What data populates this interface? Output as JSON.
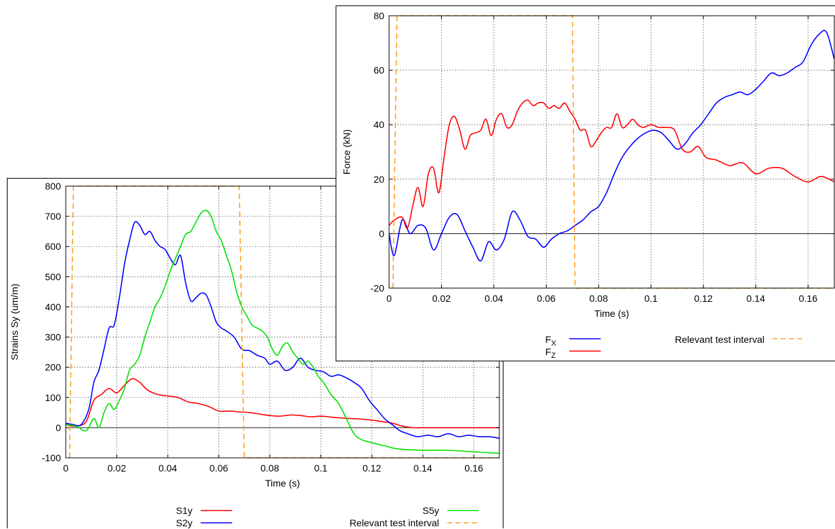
{
  "colors": {
    "red": "#ff0000",
    "blue": "#0000ff",
    "green": "#00e000",
    "orange": "#ffa020",
    "grid": "#777777"
  },
  "chart_data": [
    {
      "type": "line",
      "xlabel": "Time (s)",
      "ylabel": "Strains Sy (um/m)",
      "xlim": [
        0,
        0.17
      ],
      "ylim": [
        -100,
        800
      ],
      "xticks": [
        0,
        0.02,
        0.04,
        0.06,
        0.08,
        0.1,
        0.12,
        0.14,
        0.16
      ],
      "xtick_labels": [
        "0",
        "0.02",
        "0.04",
        "0.06",
        "0.08",
        "0.1",
        "0.12",
        "0.14",
        "0.16"
      ],
      "yticks": [
        -100,
        0,
        100,
        200,
        300,
        400,
        500,
        600,
        700,
        800
      ],
      "ytick_labels": [
        "-100",
        "0",
        "100",
        "200",
        "300",
        "400",
        "500",
        "600",
        "700",
        "800"
      ],
      "grid": true,
      "legend_placement": "bottom",
      "series": [
        {
          "name": "S1y",
          "color": "red",
          "x": [
            0,
            0.004,
            0.008,
            0.011,
            0.014,
            0.017,
            0.02,
            0.023,
            0.026,
            0.029,
            0.032,
            0.036,
            0.04,
            0.044,
            0.048,
            0.052,
            0.056,
            0.06,
            0.064,
            0.068,
            0.072,
            0.076,
            0.08,
            0.084,
            0.088,
            0.092,
            0.096,
            0.1,
            0.104,
            0.108,
            0.112,
            0.116,
            0.12,
            0.124,
            0.128,
            0.132,
            0.136,
            0.14,
            0.15,
            0.16,
            0.17
          ],
          "y": [
            10,
            5,
            20,
            90,
            110,
            130,
            115,
            140,
            162,
            150,
            125,
            110,
            105,
            100,
            85,
            80,
            70,
            55,
            55,
            52,
            50,
            45,
            40,
            38,
            42,
            40,
            36,
            38,
            35,
            32,
            30,
            28,
            25,
            20,
            15,
            5,
            0,
            0,
            0,
            0,
            0
          ]
        },
        {
          "name": "S2y",
          "color": "blue",
          "x": [
            0,
            0.003,
            0.006,
            0.009,
            0.011,
            0.013,
            0.015,
            0.017,
            0.019,
            0.021,
            0.023,
            0.025,
            0.027,
            0.029,
            0.031,
            0.033,
            0.035,
            0.037,
            0.039,
            0.041,
            0.043,
            0.045,
            0.047,
            0.049,
            0.051,
            0.053,
            0.055,
            0.057,
            0.059,
            0.061,
            0.063,
            0.066,
            0.069,
            0.072,
            0.075,
            0.078,
            0.08,
            0.083,
            0.086,
            0.089,
            0.092,
            0.095,
            0.098,
            0.101,
            0.104,
            0.107,
            0.11,
            0.113,
            0.116,
            0.119,
            0.122,
            0.125,
            0.128,
            0.131,
            0.134,
            0.138,
            0.142,
            0.146,
            0.15,
            0.154,
            0.158,
            0.162,
            0.166,
            0.17
          ],
          "y": [
            15,
            10,
            10,
            60,
            150,
            190,
            260,
            330,
            340,
            430,
            540,
            620,
            680,
            670,
            640,
            650,
            620,
            600,
            590,
            560,
            540,
            570,
            480,
            420,
            430,
            445,
            440,
            400,
            350,
            330,
            320,
            300,
            260,
            255,
            240,
            230,
            210,
            220,
            190,
            200,
            230,
            200,
            190,
            185,
            170,
            175,
            165,
            150,
            130,
            90,
            60,
            30,
            10,
            -10,
            -20,
            -30,
            -25,
            -30,
            -20,
            -30,
            -25,
            -30,
            -30,
            -35
          ]
        },
        {
          "name": "S5y",
          "color": "green",
          "x": [
            0,
            0.004,
            0.008,
            0.011,
            0.013,
            0.015,
            0.017,
            0.019,
            0.021,
            0.023,
            0.025,
            0.027,
            0.029,
            0.031,
            0.033,
            0.035,
            0.037,
            0.039,
            0.041,
            0.043,
            0.045,
            0.047,
            0.049,
            0.051,
            0.053,
            0.055,
            0.057,
            0.059,
            0.061,
            0.063,
            0.065,
            0.067,
            0.069,
            0.071,
            0.073,
            0.075,
            0.077,
            0.079,
            0.081,
            0.083,
            0.085,
            0.087,
            0.089,
            0.091,
            0.093,
            0.095,
            0.097,
            0.099,
            0.101,
            0.104,
            0.107,
            0.11,
            0.113,
            0.116,
            0.12,
            0.125,
            0.13,
            0.14,
            0.15,
            0.16,
            0.17
          ],
          "y": [
            10,
            5,
            -10,
            30,
            0,
            50,
            80,
            60,
            90,
            130,
            190,
            210,
            240,
            300,
            350,
            400,
            430,
            470,
            520,
            560,
            600,
            640,
            650,
            680,
            710,
            720,
            700,
            650,
            620,
            570,
            520,
            450,
            400,
            370,
            340,
            330,
            320,
            300,
            260,
            240,
            270,
            280,
            250,
            230,
            210,
            220,
            200,
            170,
            150,
            110,
            80,
            30,
            -20,
            -40,
            -50,
            -60,
            -70,
            -75,
            -75,
            -80,
            -85
          ]
        },
        {
          "name": "Relevant test interval",
          "color": "orange",
          "dashed": true,
          "x": [
            0.0015,
            0.003,
            0.068,
            0.07,
            0.17
          ],
          "y": [
            -100,
            800,
            800,
            -100,
            -100
          ]
        }
      ]
    },
    {
      "type": "line",
      "xlabel": "Time (s)",
      "ylabel": "Force (kN)",
      "xlim": [
        0,
        0.17
      ],
      "ylim": [
        -20,
        80
      ],
      "xticks": [
        0,
        0.02,
        0.04,
        0.06,
        0.08,
        0.1,
        0.12,
        0.14,
        0.16
      ],
      "xtick_labels": [
        "0",
        "0.02",
        "0.04",
        "0.06",
        "0.08",
        "0.1",
        "0.12",
        "0.14",
        "0.16"
      ],
      "yticks": [
        -20,
        0,
        20,
        40,
        60,
        80
      ],
      "ytick_labels": [
        "-20",
        "0",
        "20",
        "40",
        "60",
        "80"
      ],
      "grid": true,
      "legend_placement": "bottom",
      "series": [
        {
          "name": "FX",
          "color": "blue",
          "x": [
            0,
            0.002,
            0.005,
            0.008,
            0.011,
            0.014,
            0.017,
            0.02,
            0.023,
            0.026,
            0.029,
            0.032,
            0.035,
            0.038,
            0.041,
            0.044,
            0.047,
            0.05,
            0.053,
            0.056,
            0.059,
            0.062,
            0.065,
            0.068,
            0.071,
            0.074,
            0.077,
            0.08,
            0.083,
            0.086,
            0.089,
            0.092,
            0.095,
            0.098,
            0.101,
            0.104,
            0.107,
            0.11,
            0.113,
            0.116,
            0.119,
            0.122,
            0.125,
            0.128,
            0.131,
            0.134,
            0.137,
            0.14,
            0.143,
            0.146,
            0.149,
            0.152,
            0.155,
            0.158,
            0.161,
            0.164,
            0.167,
            0.17
          ],
          "y": [
            0,
            -8,
            5,
            0,
            3,
            2,
            -6,
            0,
            6,
            7,
            1,
            -5,
            -10,
            -3,
            -6,
            -2,
            8,
            5,
            -1,
            -2,
            -5,
            -2,
            0,
            1,
            3,
            5,
            8,
            10,
            15,
            22,
            28,
            32,
            35,
            37,
            38,
            37,
            34,
            31,
            33,
            37,
            40,
            44,
            48,
            50,
            51,
            52,
            51,
            53,
            56,
            59,
            58,
            59,
            61,
            63,
            69,
            73,
            74,
            64
          ]
        },
        {
          "name": "FZ",
          "color": "red",
          "x": [
            0,
            0.002,
            0.005,
            0.007,
            0.009,
            0.011,
            0.013,
            0.015,
            0.017,
            0.019,
            0.021,
            0.023,
            0.025,
            0.027,
            0.029,
            0.031,
            0.033,
            0.035,
            0.037,
            0.039,
            0.041,
            0.043,
            0.045,
            0.047,
            0.049,
            0.051,
            0.053,
            0.055,
            0.057,
            0.059,
            0.061,
            0.063,
            0.065,
            0.067,
            0.069,
            0.071,
            0.073,
            0.075,
            0.077,
            0.079,
            0.081,
            0.083,
            0.085,
            0.087,
            0.089,
            0.091,
            0.093,
            0.095,
            0.097,
            0.1,
            0.103,
            0.106,
            0.109,
            0.112,
            0.115,
            0.118,
            0.121,
            0.125,
            0.13,
            0.135,
            0.14,
            0.145,
            0.15,
            0.155,
            0.16,
            0.165,
            0.17
          ],
          "y": [
            3,
            5,
            6,
            2,
            10,
            17,
            10,
            22,
            24,
            15,
            28,
            40,
            43,
            38,
            31,
            36,
            37,
            38,
            42,
            36,
            42,
            44,
            39,
            40,
            45,
            48,
            49,
            47,
            48,
            48,
            46,
            47,
            46,
            48,
            45,
            42,
            38,
            38,
            32,
            34,
            37,
            39,
            39,
            44,
            39,
            40,
            42,
            40,
            39,
            40,
            39,
            39,
            38,
            31,
            30,
            32,
            28,
            27,
            25,
            26,
            22,
            24,
            24,
            21,
            19,
            21,
            19
          ]
        },
        {
          "name": "Relevant test interval",
          "color": "orange",
          "dashed": true,
          "x": [
            0.0015,
            0.003,
            0.07,
            0.071,
            0.17
          ],
          "y": [
            -20,
            80,
            80,
            -20,
            -20
          ]
        }
      ]
    }
  ],
  "legend_strain": {
    "s1y": "S1y",
    "s2y": "S2y",
    "s5y": "S5y",
    "interval": "Relevant test interval"
  },
  "legend_force": {
    "fx_main": "F",
    "fx_sub": "X",
    "fz_main": "F",
    "fz_sub": "Z",
    "interval": "Relevant test interval"
  }
}
